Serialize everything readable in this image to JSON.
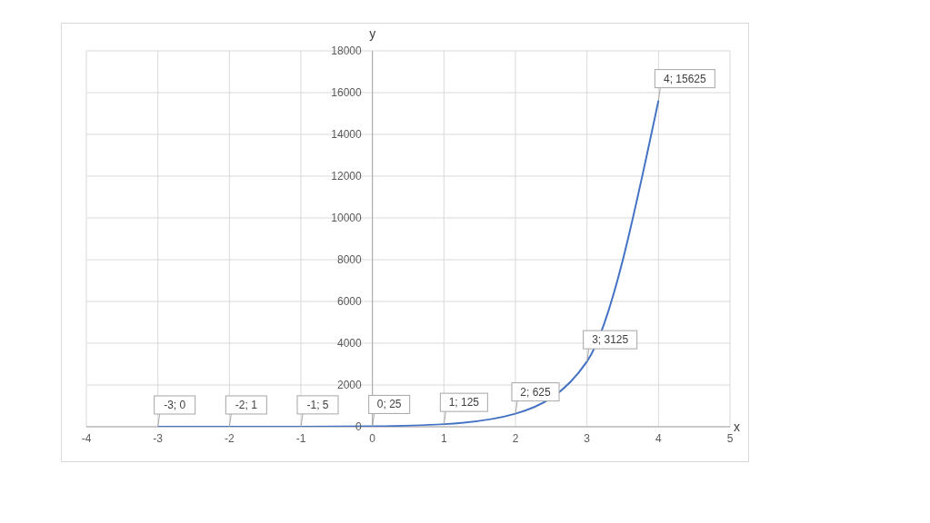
{
  "chart_data": {
    "type": "line",
    "xlabel": "x",
    "ylabel": "y",
    "x": [
      -3,
      -2,
      -1,
      0,
      1,
      2,
      3,
      4
    ],
    "series": [
      {
        "color": "#4472c4",
        "values": [
          0,
          1,
          5,
          25,
          125,
          625,
          3125,
          15625
        ],
        "value_labels": [
          "-3; 0",
          "-2; 1",
          "-1; 5",
          "0; 25",
          "1; 125",
          "2; 625",
          "3; 3125",
          "4; 15625"
        ]
      }
    ],
    "xlim": [
      -4,
      5
    ],
    "xticks": [
      -4,
      -3,
      -2,
      -1,
      0,
      1,
      2,
      3,
      4,
      5
    ],
    "ylim": [
      0,
      18000
    ],
    "yticks": [
      0,
      2000,
      4000,
      6000,
      8000,
      10000,
      12000,
      14000,
      16000,
      18000
    ],
    "grid": true,
    "legend": false,
    "marker": "none",
    "line_style": "solid"
  }
}
